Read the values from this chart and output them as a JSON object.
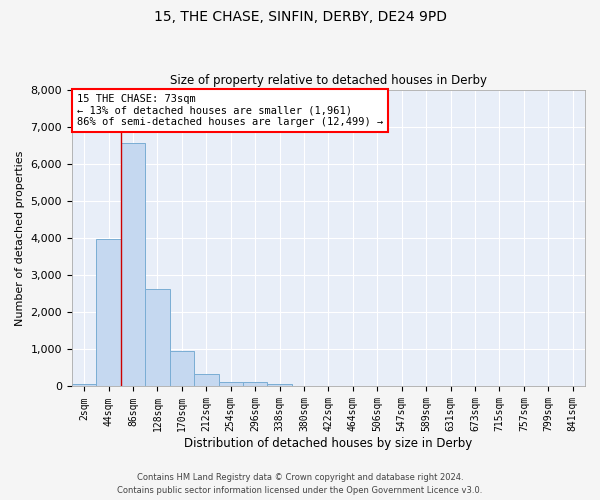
{
  "title_line1": "15, THE CHASE, SINFIN, DERBY, DE24 9PD",
  "title_line2": "Size of property relative to detached houses in Derby",
  "xlabel": "Distribution of detached houses by size in Derby",
  "ylabel": "Number of detached properties",
  "categories": [
    "2sqm",
    "44sqm",
    "86sqm",
    "128sqm",
    "170sqm",
    "212sqm",
    "254sqm",
    "296sqm",
    "338sqm",
    "380sqm",
    "422sqm",
    "464sqm",
    "506sqm",
    "547sqm",
    "589sqm",
    "631sqm",
    "673sqm",
    "715sqm",
    "757sqm",
    "799sqm",
    "841sqm"
  ],
  "bar_values": [
    75,
    3980,
    6550,
    2620,
    950,
    330,
    130,
    110,
    75,
    0,
    0,
    0,
    0,
    0,
    0,
    0,
    0,
    0,
    0,
    0,
    0
  ],
  "bar_color": "#c5d8f0",
  "bar_edge_color": "#7aadd4",
  "annotation_text_line1": "15 THE CHASE: 73sqm",
  "annotation_text_line2": "← 13% of detached houses are smaller (1,961)",
  "annotation_text_line3": "86% of semi-detached houses are larger (12,499) →",
  "vline_x": 1.5,
  "vline_color": "#cc0000",
  "ylim": [
    0,
    8000
  ],
  "yticks": [
    0,
    1000,
    2000,
    3000,
    4000,
    5000,
    6000,
    7000,
    8000
  ],
  "background_color": "#e8eef8",
  "grid_color": "#ffffff",
  "fig_bg_color": "#f5f5f5",
  "footer_line1": "Contains HM Land Registry data © Crown copyright and database right 2024.",
  "footer_line2": "Contains public sector information licensed under the Open Government Licence v3.0."
}
